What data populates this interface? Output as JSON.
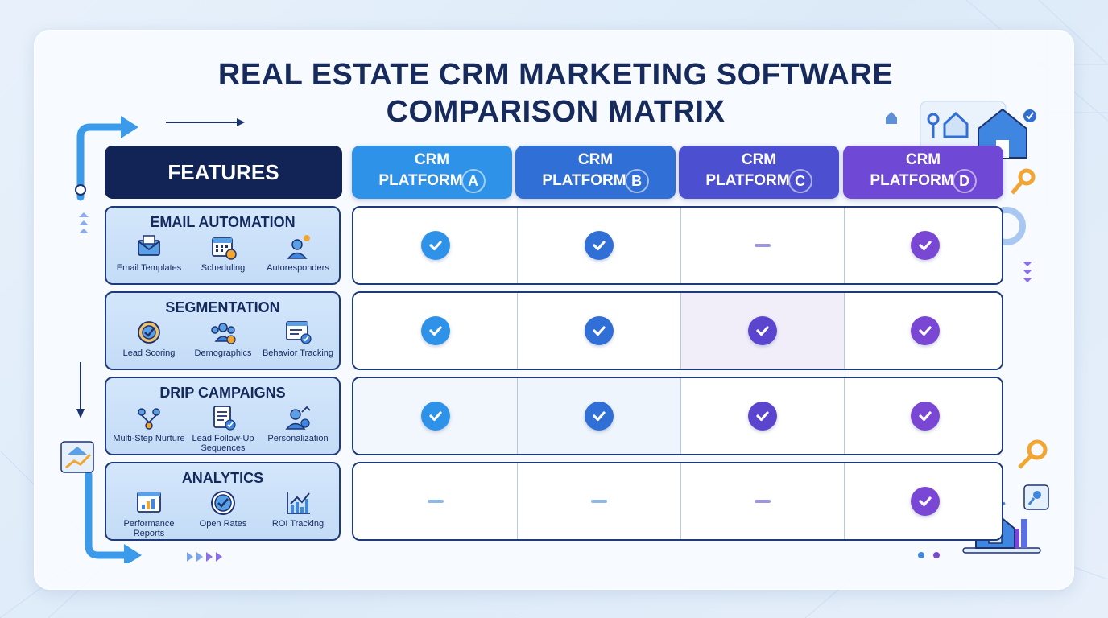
{
  "title": {
    "line1": "REAL ESTATE CRM MARKETING SOFTWARE",
    "line2": "COMPARISON MATRIX"
  },
  "header": {
    "features": "FEATURES",
    "platforms": [
      {
        "line1": "CRM",
        "line2": "PLATFORM",
        "letter": "A",
        "color": "#2e93e8"
      },
      {
        "line1": "CRM",
        "line2": "PLATFORM",
        "letter": "B",
        "color": "#2f6fd6"
      },
      {
        "line1": "CRM",
        "line2": "PLATFORM",
        "letter": "C",
        "color": "#4c4fd0"
      },
      {
        "line1": "CRM",
        "line2": "PLATFORM",
        "letter": "D",
        "color": "#7048d6"
      }
    ]
  },
  "features": [
    {
      "title": "EMAIL AUTOMATION",
      "subs": [
        {
          "label": "Email Templates",
          "icon": "envelope-icon"
        },
        {
          "label": "Scheduling",
          "icon": "calendar-icon"
        },
        {
          "label": "Autoresponders",
          "icon": "support-agent-icon"
        }
      ],
      "values": [
        "check",
        "check",
        "dash",
        "check"
      ]
    },
    {
      "title": "SEGMENTATION",
      "subs": [
        {
          "label": "Lead Scoring",
          "icon": "target-icon"
        },
        {
          "label": "Demographics",
          "icon": "people-icon"
        },
        {
          "label": "Behavior Tracking",
          "icon": "browser-check-icon"
        }
      ],
      "values": [
        "check",
        "check",
        "check",
        "check"
      ]
    },
    {
      "title": "DRIP CAMPAIGNS",
      "subs": [
        {
          "label": "Multi-Step Nurture",
          "icon": "flow-icon"
        },
        {
          "label": "Lead Follow-Up Sequences",
          "icon": "checklist-icon"
        },
        {
          "label": "Personalization",
          "icon": "user-growth-icon"
        }
      ],
      "values": [
        "check",
        "check",
        "check",
        "check"
      ]
    },
    {
      "title": "ANALYTICS",
      "subs": [
        {
          "label": "Performance Reports",
          "icon": "bar-report-icon"
        },
        {
          "label": "Open Rates",
          "icon": "check-circle-icon"
        },
        {
          "label": "ROI Tracking",
          "icon": "growth-chart-icon"
        }
      ],
      "values": [
        "dash",
        "dash",
        "dash",
        "check"
      ]
    }
  ],
  "colors": {
    "navy": "#122456",
    "check_a": "#2e93e8",
    "check_b": "#2f6fd6",
    "check_c": "#5b45cf",
    "check_d": "#7a47d4",
    "dash_a": "#8fb8ea",
    "dash_c": "#9d95e6"
  }
}
